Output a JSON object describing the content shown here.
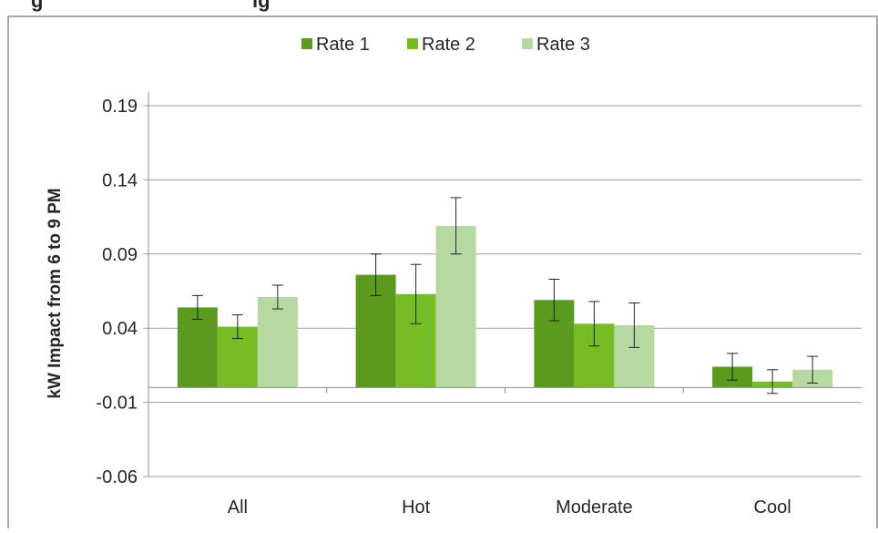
{
  "title_fragment": "g",
  "title_fragment2": "ig",
  "chart_data": {
    "type": "bar",
    "title": "",
    "xlabel": "",
    "ylabel": "kW Impact from 6 to 9 PM",
    "categories": [
      "All",
      "Hot",
      "Moderate",
      "Cool"
    ],
    "series": [
      {
        "name": "Rate 1",
        "color": "#5a9a1e",
        "values": [
          0.054,
          0.076,
          0.059,
          0.014
        ],
        "errors": [
          0.008,
          0.014,
          0.014,
          0.009
        ]
      },
      {
        "name": "Rate 2",
        "color": "#76bc25",
        "values": [
          0.041,
          0.063,
          0.043,
          0.004
        ],
        "errors": [
          0.008,
          0.02,
          0.015,
          0.008
        ]
      },
      {
        "name": "Rate 3",
        "color": "#b5d9a1",
        "values": [
          0.061,
          0.109,
          0.042,
          0.012
        ],
        "errors": [
          0.008,
          0.019,
          0.015,
          0.009
        ]
      }
    ],
    "yticks": [
      "0.19",
      "0.14",
      "0.09",
      "0.04",
      "-0.01",
      "-0.06"
    ],
    "ylim": [
      -0.06,
      0.19
    ],
    "grid": true,
    "legend": "top-center"
  }
}
